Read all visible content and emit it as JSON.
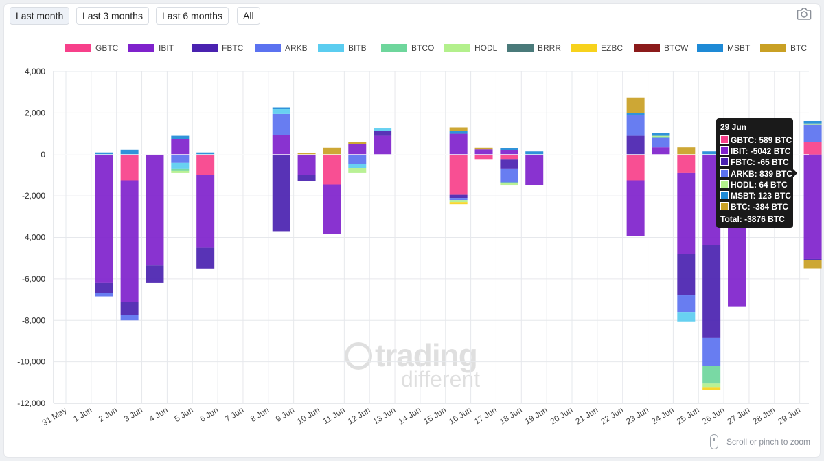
{
  "range_buttons": [
    {
      "label": "Last month",
      "active": true
    },
    {
      "label": "Last 3 months",
      "active": false
    },
    {
      "label": "Last 6 months",
      "active": false
    },
    {
      "label": "All",
      "active": false
    }
  ],
  "camera_icon": "camera-icon",
  "zoom_hint": "Scroll or pinch to zoom",
  "watermark": {
    "line1": "trading",
    "line2": "different"
  },
  "tooltip": {
    "title": "29 Jun",
    "rows": [
      {
        "label": "GBTC: 589 BTC",
        "color": "#f7408a"
      },
      {
        "label": "IBIT: -5042 BTC",
        "color": "#7f22cc"
      },
      {
        "label": "FBTC: -65 BTC",
        "color": "#4a22b0"
      },
      {
        "label": "ARKB: 839 BTC",
        "color": "#5b72f0"
      },
      {
        "label": "HODL: 64 BTC",
        "color": "#b3f08c"
      },
      {
        "label": "MSBT: 123 BTC",
        "color": "#1e8ad6"
      },
      {
        "label": "BTC: -384 BTC",
        "color": "#c9a024"
      }
    ],
    "total": "Total: -3876 BTC"
  },
  "chart_data": {
    "type": "bar",
    "stacked": true,
    "categories": [
      "31 May",
      "1 Jun",
      "2 Jun",
      "3 Jun",
      "4 Jun",
      "5 Jun",
      "6 Jun",
      "7 Jun",
      "8 Jun",
      "9 Jun",
      "10 Jun",
      "11 Jun",
      "12 Jun",
      "13 Jun",
      "14 Jun",
      "15 Jun",
      "16 Jun",
      "17 Jun",
      "18 Jun",
      "19 Jun",
      "20 Jun",
      "21 Jun",
      "22 Jun",
      "23 Jun",
      "24 Jun",
      "25 Jun",
      "26 Jun",
      "27 Jun",
      "28 Jun",
      "29 Jun"
    ],
    "ylim": [
      -12000,
      4000
    ],
    "yticks": [
      4000,
      2000,
      0,
      -2000,
      -4000,
      -6000,
      -8000,
      -10000,
      -12000
    ],
    "ytick_labels": [
      "4,000",
      "2,000",
      "0",
      "-2,000",
      "-4,000",
      "-6,000",
      "-8,000",
      "-10,000",
      "-12,000"
    ],
    "grid": true,
    "legend_position": "top",
    "series": [
      {
        "name": "GBTC",
        "color": "#f7408a",
        "values": [
          0,
          0,
          -1250,
          0,
          0,
          -1000,
          0,
          0,
          0,
          0,
          -1450,
          0,
          0,
          0,
          0,
          -1950,
          -250,
          -250,
          0,
          0,
          0,
          0,
          -1250,
          0,
          -900,
          0,
          0,
          0,
          0,
          589
        ]
      },
      {
        "name": "IBIT",
        "color": "#7f22cc",
        "values": [
          0,
          -6200,
          -5850,
          -5350,
          750,
          -3500,
          0,
          0,
          950,
          -1000,
          -2400,
          500,
          900,
          0,
          0,
          1000,
          250,
          200,
          -1480,
          0,
          0,
          0,
          -2700,
          350,
          -3900,
          -4350,
          -7350,
          0,
          0,
          -5042
        ]
      },
      {
        "name": "FBTC",
        "color": "#4a22b0",
        "values": [
          0,
          -500,
          -650,
          -850,
          0,
          -1000,
          0,
          0,
          -3700,
          -300,
          0,
          0,
          250,
          0,
          0,
          -150,
          0,
          -450,
          0,
          0,
          0,
          0,
          900,
          0,
          -2000,
          -4500,
          0,
          0,
          0,
          -65
        ]
      },
      {
        "name": "ARKB",
        "color": "#5b72f0",
        "values": [
          0,
          -150,
          -250,
          0,
          -400,
          0,
          0,
          0,
          1000,
          0,
          0,
          -450,
          0,
          0,
          0,
          -100,
          0,
          -650,
          0,
          0,
          0,
          0,
          1000,
          450,
          -800,
          -1350,
          0,
          0,
          0,
          839
        ]
      },
      {
        "name": "BITB",
        "color": "#5bcdf0",
        "values": [
          0,
          0,
          0,
          0,
          -300,
          0,
          0,
          0,
          250,
          0,
          0,
          -200,
          100,
          0,
          0,
          0,
          0,
          0,
          0,
          0,
          0,
          0,
          0,
          0,
          -450,
          0,
          0,
          0,
          0,
          0
        ]
      },
      {
        "name": "BTCO",
        "color": "#6ed69c",
        "values": [
          0,
          0,
          0,
          0,
          -100,
          0,
          0,
          0,
          0,
          0,
          0,
          0,
          0,
          0,
          0,
          0,
          0,
          -50,
          0,
          0,
          0,
          0,
          0,
          50,
          0,
          -850,
          0,
          0,
          0,
          0
        ]
      },
      {
        "name": "HODL",
        "color": "#b3f08c",
        "values": [
          0,
          0,
          0,
          0,
          -100,
          0,
          0,
          0,
          0,
          0,
          0,
          -250,
          0,
          0,
          0,
          -100,
          0,
          -100,
          0,
          0,
          0,
          0,
          0,
          50,
          0,
          -200,
          0,
          0,
          0,
          64
        ]
      },
      {
        "name": "BRRR",
        "color": "#4a7a7a",
        "values": [
          0,
          0,
          0,
          0,
          0,
          0,
          0,
          0,
          0,
          0,
          0,
          0,
          0,
          0,
          0,
          0,
          0,
          0,
          0,
          0,
          0,
          0,
          0,
          0,
          0,
          0,
          0,
          0,
          0,
          0
        ]
      },
      {
        "name": "EZBC",
        "color": "#f7d21c",
        "values": [
          0,
          0,
          0,
          0,
          0,
          0,
          0,
          0,
          0,
          0,
          0,
          0,
          0,
          0,
          0,
          -100,
          0,
          0,
          0,
          0,
          0,
          0,
          0,
          0,
          0,
          -100,
          0,
          0,
          0,
          0
        ]
      },
      {
        "name": "BTCW",
        "color": "#8b1a1a",
        "values": [
          0,
          0,
          0,
          0,
          0,
          0,
          0,
          0,
          0,
          0,
          0,
          0,
          0,
          0,
          0,
          0,
          0,
          0,
          0,
          0,
          0,
          0,
          0,
          0,
          0,
          0,
          0,
          0,
          0,
          0
        ]
      },
      {
        "name": "MSBT",
        "color": "#1e8ad6",
        "values": [
          0,
          100,
          230,
          0,
          150,
          100,
          0,
          0,
          60,
          0,
          0,
          0,
          0,
          0,
          0,
          150,
          0,
          100,
          150,
          0,
          0,
          0,
          100,
          150,
          0,
          150,
          0,
          0,
          0,
          123
        ]
      },
      {
        "name": "BTC",
        "color": "#c9a024",
        "values": [
          0,
          0,
          0,
          0,
          0,
          0,
          0,
          0,
          0,
          80,
          330,
          100,
          0,
          0,
          0,
          150,
          80,
          0,
          0,
          0,
          0,
          0,
          750,
          0,
          350,
          0,
          0,
          0,
          0,
          -384
        ]
      }
    ]
  }
}
